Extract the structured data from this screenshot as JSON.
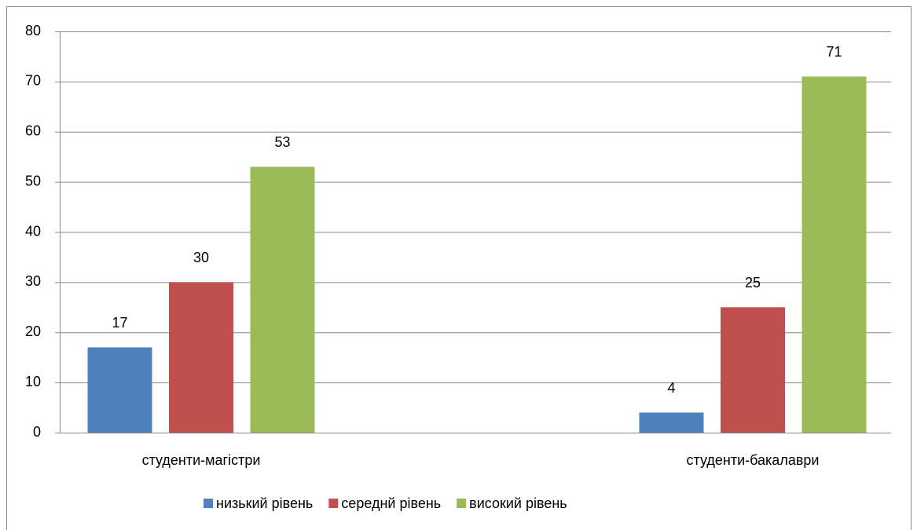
{
  "chart_data": {
    "type": "bar",
    "categories": [
      "студенти-магістри",
      "студенти-бакалаври"
    ],
    "series": [
      {
        "name": "низький рівень",
        "color": "#4f81bd",
        "values": [
          17,
          4
        ]
      },
      {
        "name": "середнй рівень",
        "color": "#c0504d",
        "values": [
          30,
          25
        ]
      },
      {
        "name": "високий рівень",
        "color": "#9bbb59",
        "values": [
          53,
          71
        ]
      }
    ],
    "ylim": [
      0,
      80
    ],
    "yticks": [
      0,
      10,
      20,
      30,
      40,
      50,
      60,
      70,
      80
    ],
    "grid": true,
    "legend": "bottom"
  }
}
